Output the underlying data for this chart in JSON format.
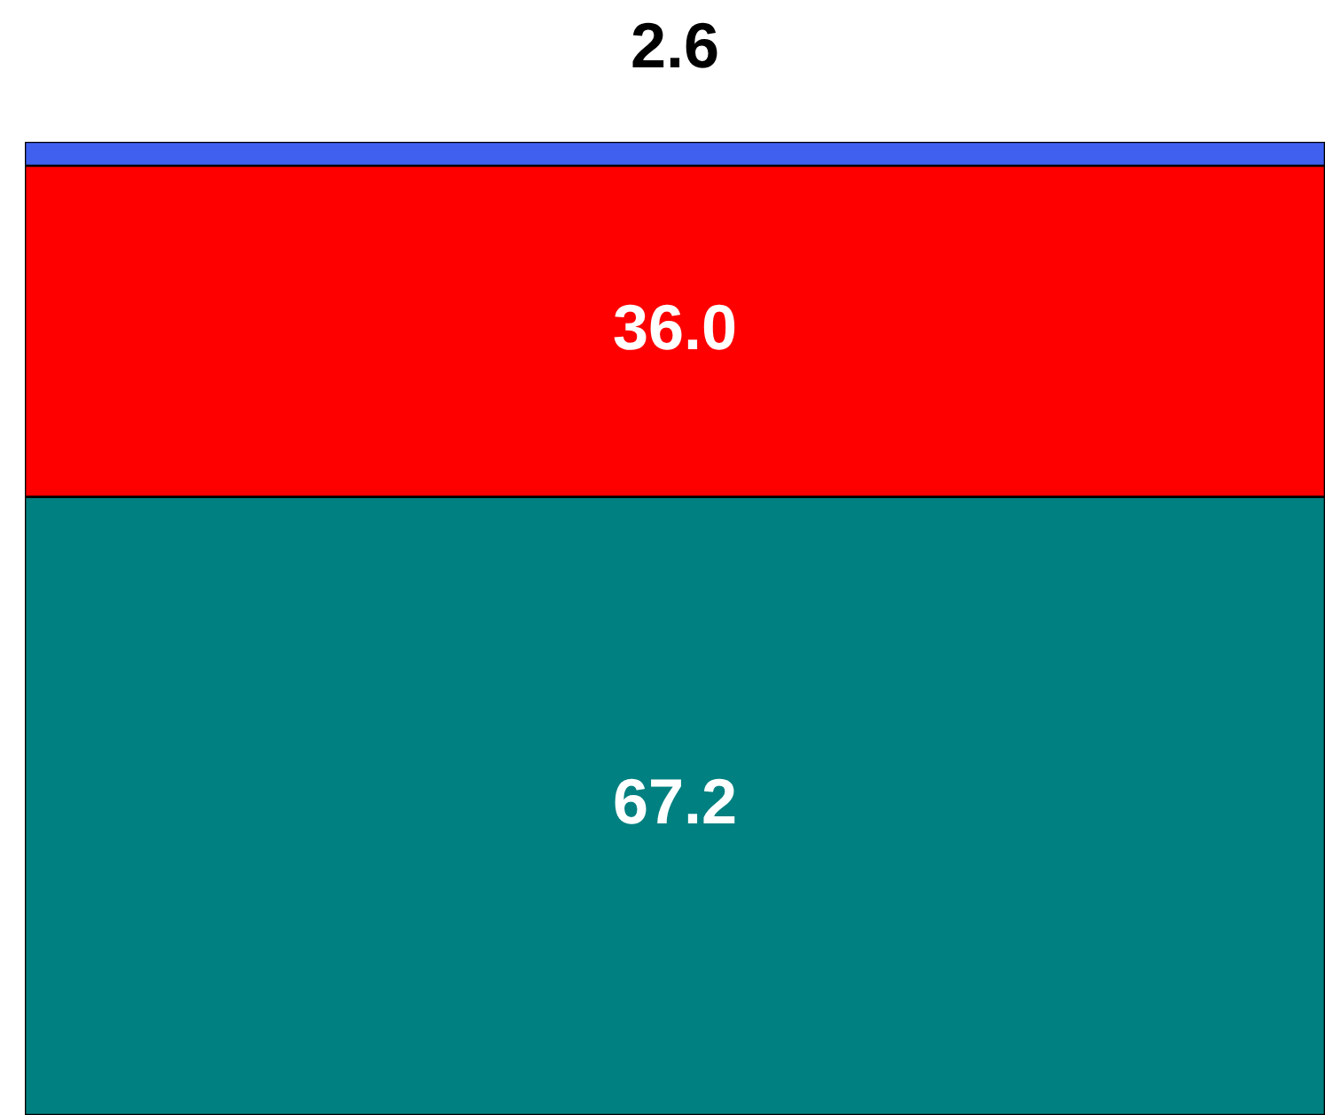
{
  "chart_data": {
    "type": "bar",
    "stacked": true,
    "categories": [
      null
    ],
    "series": [
      {
        "color": "#008080",
        "values": [
          67.2
        ],
        "value_labels": [
          "67.2"
        ]
      },
      {
        "color": "#ff0000",
        "values": [
          36.0
        ],
        "value_labels": [
          "36.0"
        ]
      },
      {
        "color": "#4060f0",
        "values": [
          2.6
        ],
        "value_labels": [
          "2.6"
        ]
      }
    ]
  }
}
